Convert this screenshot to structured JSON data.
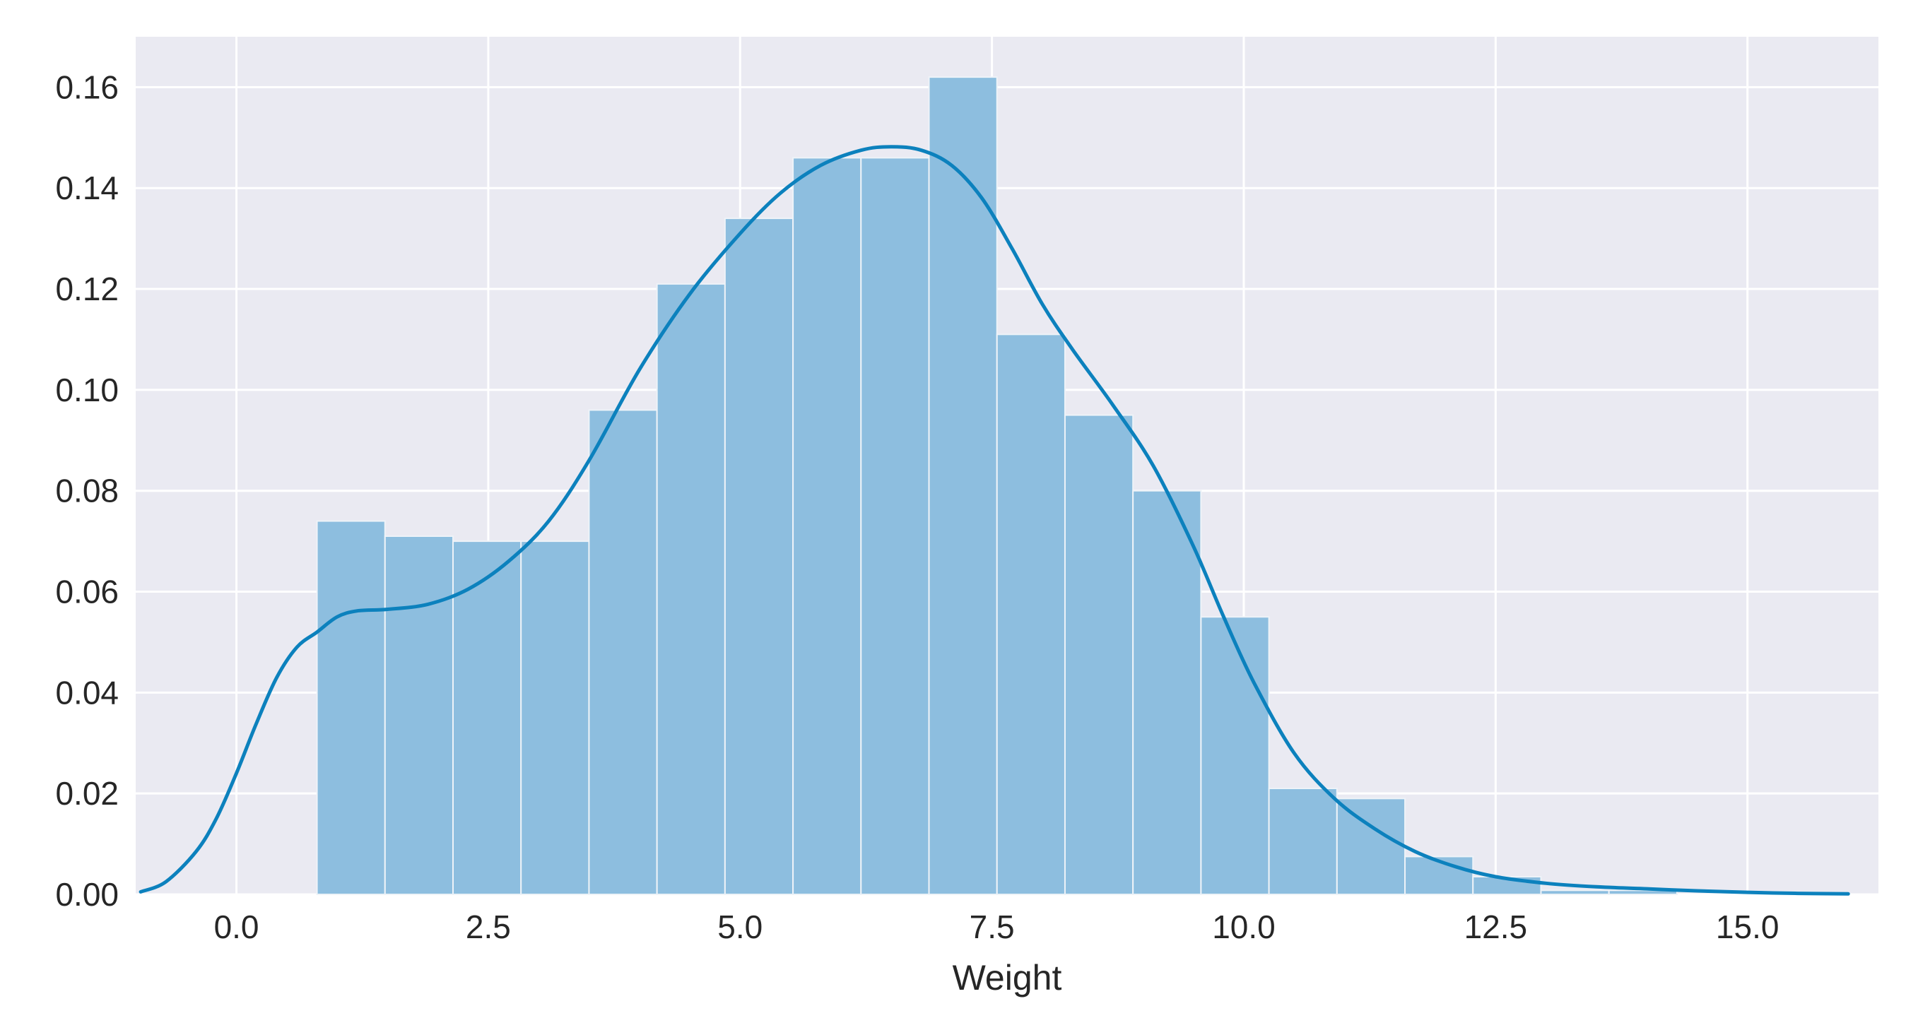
{
  "chart_data": {
    "type": "bar",
    "subtype": "histogram-with-kde",
    "title": "",
    "xlabel": "Weight",
    "ylabel": "",
    "xlim": [
      -1.0,
      16.3
    ],
    "ylim": [
      0.0,
      0.17
    ],
    "x_ticks": [
      "0.0",
      "2.5",
      "5.0",
      "7.5",
      "10.0",
      "12.5",
      "15.0"
    ],
    "x_tick_values": [
      0.0,
      2.5,
      5.0,
      7.5,
      10.0,
      12.5,
      15.0
    ],
    "y_ticks": [
      "0.00",
      "0.02",
      "0.04",
      "0.06",
      "0.08",
      "0.10",
      "0.12",
      "0.14",
      "0.16"
    ],
    "y_tick_values": [
      0.0,
      0.02,
      0.04,
      0.06,
      0.08,
      0.1,
      0.12,
      0.14,
      0.16
    ],
    "grid": true,
    "bin_edges": [
      0.8,
      1.475,
      2.15,
      2.825,
      3.5,
      4.175,
      4.85,
      5.525,
      6.2,
      6.875,
      7.55,
      8.225,
      8.9,
      9.575,
      10.25,
      10.925,
      11.6,
      12.275,
      12.95,
      13.625,
      14.3
    ],
    "values": [
      0.074,
      0.071,
      0.07,
      0.07,
      0.096,
      0.121,
      0.134,
      0.146,
      0.146,
      0.162,
      0.111,
      0.095,
      0.08,
      0.055,
      0.021,
      0.019,
      0.0075,
      0.0035,
      0.0008,
      0.0008
    ],
    "kde": {
      "x": [
        -0.95,
        -0.7,
        -0.4,
        -0.2,
        0.0,
        0.2,
        0.4,
        0.6,
        0.8,
        1.0,
        1.2,
        1.5,
        1.9,
        2.3,
        2.7,
        3.1,
        3.5,
        4.0,
        4.5,
        5.0,
        5.4,
        5.8,
        6.2,
        6.5,
        6.8,
        7.1,
        7.4,
        7.7,
        8.0,
        8.3,
        8.7,
        9.1,
        9.5,
        9.8,
        10.1,
        10.5,
        10.9,
        11.3,
        11.7,
        12.1,
        12.5,
        13.0,
        13.5,
        14.0,
        14.5,
        15.0,
        15.5,
        16.0
      ],
      "y": [
        0.0005,
        0.0025,
        0.0085,
        0.015,
        0.024,
        0.034,
        0.043,
        0.049,
        0.052,
        0.055,
        0.0562,
        0.0565,
        0.0575,
        0.0605,
        0.066,
        0.074,
        0.086,
        0.104,
        0.119,
        0.131,
        0.139,
        0.1445,
        0.1475,
        0.1482,
        0.1475,
        0.1445,
        0.138,
        0.128,
        0.117,
        0.108,
        0.097,
        0.085,
        0.069,
        0.055,
        0.042,
        0.028,
        0.019,
        0.013,
        0.0085,
        0.0055,
        0.0035,
        0.0022,
        0.0015,
        0.0011,
        0.0007,
        0.0004,
        0.0002,
        0.0001
      ]
    },
    "colors": {
      "background": "#eaeaf2",
      "grid": "#ffffff",
      "bar_fill": "#8dbedf",
      "bar_edge": "#eef3f8",
      "kde_line": "#0c81bd"
    }
  }
}
